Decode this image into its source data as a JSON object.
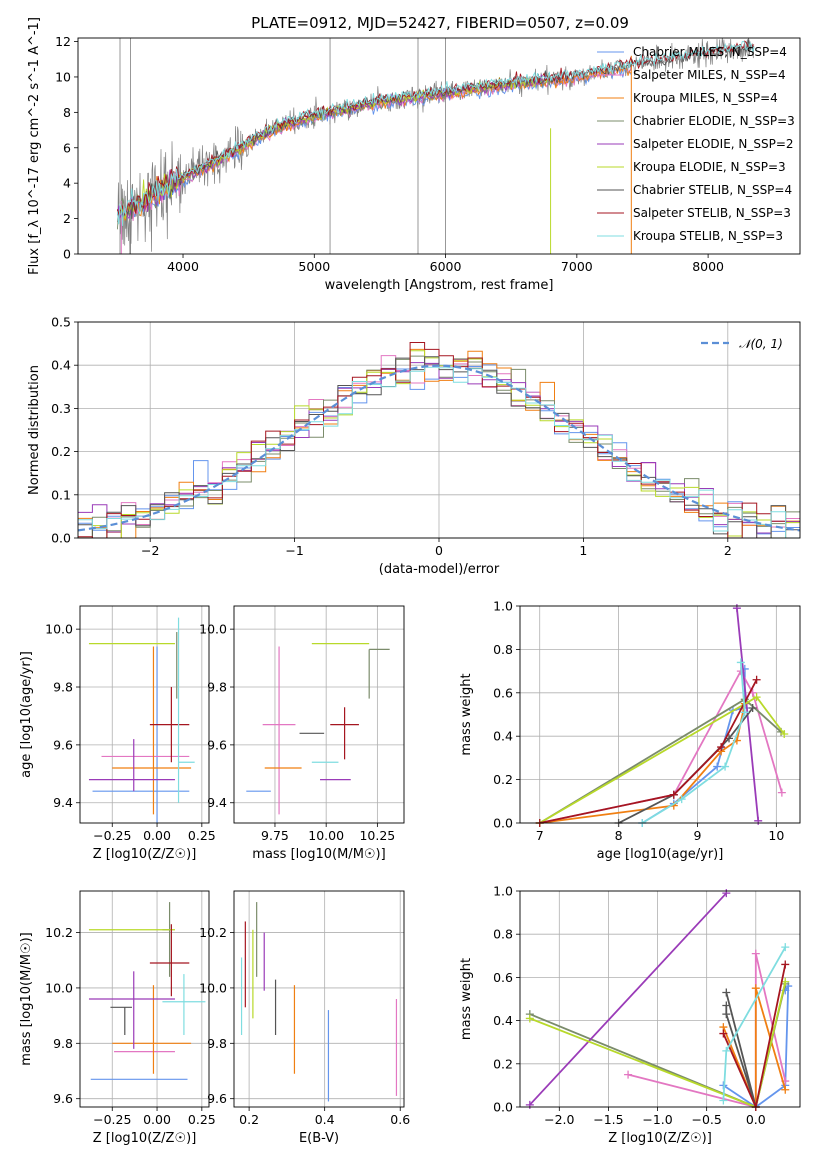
{
  "figure": {
    "title": "PLATE=0912, MJD=52427, FIBERID=0507, z=0.09"
  },
  "colors": {
    "Chabrier MILES": "#6495ED",
    "Salpeter MILES": "#E377C2",
    "Kroupa MILES": "#F07F12",
    "Chabrier ELODIE": "#7B8C6B",
    "Salpeter ELODIE": "#9A3BB8",
    "Kroupa ELODIE": "#B8D92A",
    "Chabrier STELIB": "#555555",
    "Salpeter STELIB": "#A51620",
    "Kroupa STELIB": "#7FDDE0",
    "data": "#7F7F7F",
    "normal": "#5B8FD6"
  },
  "chart_data": [
    {
      "id": "spectrum",
      "type": "line",
      "title": "PLATE=0912, MJD=52427, FIBERID=0507, z=0.09",
      "xlabel": "wavelength [Angstrom, rest frame]",
      "ylabel": "Flux [f_λ 10^-17 erg cm^-2 s^-1 A^-1]",
      "xlim": [
        3200,
        8700
      ],
      "ylim": [
        0,
        12.2
      ],
      "xticks": [
        4000,
        5000,
        6000,
        7000,
        8000
      ],
      "yticks": [
        0,
        2,
        4,
        6,
        8,
        10,
        12
      ],
      "grid": false,
      "legend_position": "top-right",
      "data_trend": {
        "x": [
          3500,
          3700,
          4000,
          4300,
          4700,
          5000,
          5500,
          6000,
          6500,
          7000,
          7400,
          8000,
          8300
        ],
        "y": [
          2.2,
          3.0,
          4.3,
          5.4,
          7.1,
          7.8,
          8.6,
          9.1,
          9.6,
          10.0,
          10.6,
          11.3,
          11.6
        ]
      },
      "series": [
        {
          "name": "Chabrier MILES, N_SSP=4"
        },
        {
          "name": "Salpeter MILES, N_SSP=4"
        },
        {
          "name": "Kroupa MILES, N_SSP=4"
        },
        {
          "name": "Chabrier ELODIE, N_SSP=3"
        },
        {
          "name": "Salpeter ELODIE, N_SSP=2"
        },
        {
          "name": "Kroupa ELODIE, N_SSP=3"
        },
        {
          "name": "Chabrier STELIB, N_SSP=4"
        },
        {
          "name": "Salpeter STELIB, N_SSP=3"
        },
        {
          "name": "Kroupa STELIB, N_SSP=3"
        }
      ]
    },
    {
      "id": "residuals",
      "type": "line",
      "xlabel": "(data-model)/error",
      "ylabel": "Normed distribution",
      "xlim": [
        -2.5,
        2.5
      ],
      "ylim": [
        0,
        0.5
      ],
      "xticks": [
        -2,
        -1,
        0,
        1,
        2
      ],
      "yticks": [
        0.0,
        0.1,
        0.2,
        0.3,
        0.4,
        0.5
      ],
      "grid": true,
      "legend_position": "top-right",
      "legend": "𝒩(0, 1)",
      "bin_width": 0.1
    },
    {
      "id": "age_vs_Z",
      "type": "scatter",
      "xlabel": "Z [log10(Z/Z☉)]",
      "ylabel": "age  [log10(age/yr)]",
      "xlim": [
        -0.43,
        0.29
      ],
      "ylim": [
        9.33,
        10.08
      ],
      "xticks": [
        -0.25,
        0.0,
        0.25
      ],
      "yticks": [
        9.4,
        9.6,
        9.8,
        10.0
      ],
      "grid": true,
      "points": [
        {
          "series": "Chabrier MILES",
          "x": 0.0,
          "y": 9.44,
          "xerr": [
            0.36,
            0.18
          ],
          "yerr": [
            0.14,
            0.5
          ]
        },
        {
          "series": "Salpeter MILES",
          "x": 0.0,
          "y": 9.56,
          "xerr": [
            0.31,
            0.18
          ],
          "yerr": [
            0.0,
            0.0
          ]
        },
        {
          "series": "Kroupa MILES",
          "x": -0.02,
          "y": 9.52,
          "xerr": [
            0.23,
            0.21
          ],
          "yerr": [
            0.16,
            0.42
          ]
        },
        {
          "series": "Chabrier ELODIE",
          "x": 0.11,
          "y": 9.93,
          "xerr": [
            0.0,
            0.0
          ],
          "yerr": [
            0.17,
            0.06
          ]
        },
        {
          "series": "Salpeter ELODIE",
          "x": -0.13,
          "y": 9.48,
          "xerr": [
            0.25,
            0.23
          ],
          "yerr": [
            0.04,
            0.14
          ]
        },
        {
          "series": "Kroupa ELODIE",
          "x": -0.1,
          "y": 9.95,
          "xerr": [
            0.28,
            0.2
          ],
          "yerr": [
            0.0,
            0.0
          ]
        },
        {
          "series": "Chabrier STELIB",
          "x": -0.18,
          "y": 9.64,
          "xerr": [
            0.0,
            0.0
          ],
          "yerr": [
            0.0,
            0.0
          ]
        },
        {
          "series": "Salpeter STELIB",
          "x": 0.08,
          "y": 9.67,
          "xerr": [
            0.12,
            0.1
          ],
          "yerr": [
            0.13,
            0.13
          ]
        },
        {
          "series": "Kroupa STELIB",
          "x": 0.12,
          "y": 9.54,
          "xerr": [
            0.0,
            0.09
          ],
          "yerr": [
            0.14,
            0.5
          ]
        }
      ]
    },
    {
      "id": "age_vs_mass",
      "type": "scatter",
      "xlabel": "mass [log10(M/M☉)]",
      "ylabel": "",
      "xlim": [
        9.55,
        10.38
      ],
      "ylim": [
        9.33,
        10.08
      ],
      "xticks": [
        9.75,
        10.0,
        10.25
      ],
      "yticks": [
        9.4,
        9.6,
        9.8,
        10.0
      ],
      "grid": true,
      "points": [
        {
          "series": "Chabrier MILES",
          "x": 9.67,
          "y": 9.44,
          "xerr": [
            0.06,
            0.06
          ],
          "yerr": [
            0.0,
            0.0
          ]
        },
        {
          "series": "Salpeter MILES",
          "x": 9.77,
          "y": 9.67,
          "xerr": [
            0.08,
            0.08
          ],
          "yerr": [
            0.31,
            0.27
          ]
        },
        {
          "series": "Kroupa MILES",
          "x": 9.8,
          "y": 9.52,
          "xerr": [
            0.1,
            0.08
          ],
          "yerr": [
            0.0,
            0.0
          ]
        },
        {
          "series": "Chabrier ELODIE",
          "x": 10.21,
          "y": 9.93,
          "xerr": [
            0.0,
            0.1
          ],
          "yerr": [
            0.17,
            0.0
          ]
        },
        {
          "series": "Salpeter ELODIE",
          "x": 10.06,
          "y": 9.48,
          "xerr": [
            0.09,
            0.06
          ],
          "yerr": [
            0.0,
            0.0
          ]
        },
        {
          "series": "Kroupa ELODIE",
          "x": 10.21,
          "y": 9.95,
          "xerr": [
            0.28,
            0.0
          ],
          "yerr": [
            0.0,
            0.0
          ]
        },
        {
          "series": "Chabrier STELIB",
          "x": 9.93,
          "y": 9.64,
          "xerr": [
            0.06,
            0.06
          ],
          "yerr": [
            0.0,
            0.0
          ]
        },
        {
          "series": "Salpeter STELIB",
          "x": 10.09,
          "y": 9.67,
          "xerr": [
            0.07,
            0.07
          ],
          "yerr": [
            0.12,
            0.06
          ]
        },
        {
          "series": "Kroupa STELIB",
          "x": 10.0,
          "y": 9.54,
          "xerr": [
            0.07,
            0.06
          ],
          "yerr": [
            0.0,
            0.0
          ]
        }
      ]
    },
    {
      "id": "weight_vs_age",
      "type": "line",
      "xlabel": "age  [log10(age/yr)]",
      "ylabel": "mass weight",
      "xlim": [
        6.75,
        10.3
      ],
      "ylim": [
        0,
        1.0
      ],
      "xticks": [
        7,
        8,
        9,
        10
      ],
      "yticks": [
        0.0,
        0.2,
        0.4,
        0.6,
        0.8,
        1.0
      ],
      "grid": true,
      "series": [
        {
          "name": "Chabrier MILES",
          "x": [
            8.3,
            8.7,
            9.25,
            9.45,
            9.6,
            9.6
          ],
          "y": [
            0.0,
            0.09,
            0.26,
            0.52,
            0.53,
            0.71
          ]
        },
        {
          "name": "Salpeter MILES",
          "x": [
            7.0,
            8.7,
            9.55,
            9.7,
            10.07
          ],
          "y": [
            0.0,
            0.13,
            0.7,
            0.6,
            0.14
          ]
        },
        {
          "name": "Kroupa MILES",
          "x": [
            7.0,
            8.7,
            9.3,
            9.5,
            9.6
          ],
          "y": [
            0.0,
            0.08,
            0.33,
            0.38,
            0.55
          ]
        },
        {
          "name": "Chabrier ELODIE",
          "x": [
            7.0,
            9.6,
            10.06
          ],
          "y": [
            0.0,
            0.57,
            0.42
          ]
        },
        {
          "name": "Salpeter ELODIE",
          "x": [
            9.5,
            9.77
          ],
          "y": [
            0.99,
            0.01
          ]
        },
        {
          "name": "Kroupa ELODIE",
          "x": [
            7.0,
            9.75,
            10.1
          ],
          "y": [
            0.0,
            0.58,
            0.41
          ]
        },
        {
          "name": "Chabrier STELIB",
          "x": [
            8.0,
            8.7,
            9.4,
            9.7
          ],
          "y": [
            0.0,
            0.13,
            0.39,
            0.53
          ]
        },
        {
          "name": "Salpeter STELIB",
          "x": [
            7.0,
            8.7,
            9.3,
            9.75
          ],
          "y": [
            0.0,
            0.13,
            0.35,
            0.66
          ]
        },
        {
          "name": "Kroupa STELIB",
          "x": [
            8.3,
            8.8,
            9.35,
            9.6,
            9.55
          ],
          "y": [
            0.0,
            0.11,
            0.26,
            0.51,
            0.74
          ]
        }
      ]
    },
    {
      "id": "mass_vs_Z",
      "type": "scatter",
      "xlabel": "Z [log10(Z/Z☉)]",
      "ylabel": "mass [log10(M/M☉)]",
      "xlim": [
        -0.43,
        0.29
      ],
      "ylim": [
        9.57,
        10.35
      ],
      "xticks": [
        -0.25,
        0.0,
        0.25
      ],
      "yticks": [
        9.6,
        9.8,
        10.0,
        10.2
      ],
      "grid": true,
      "points": [
        {
          "series": "Chabrier MILES",
          "x": -0.1,
          "y": 9.67,
          "xerr": [
            0.27,
            0.27
          ],
          "yerr": [
            0.0,
            0.0
          ]
        },
        {
          "series": "Salpeter MILES",
          "x": -0.04,
          "y": 9.77,
          "xerr": [
            0.2,
            0.14
          ],
          "yerr": [
            0.0,
            0.0
          ]
        },
        {
          "series": "Kroupa MILES",
          "x": -0.02,
          "y": 9.8,
          "xerr": [
            0.23,
            0.21
          ],
          "yerr": [
            0.11,
            0.21
          ]
        },
        {
          "series": "Chabrier ELODIE",
          "x": 0.07,
          "y": 10.21,
          "xerr": [
            0.04,
            0.0
          ],
          "yerr": [
            0.17,
            0.1
          ]
        },
        {
          "series": "Salpeter ELODIE",
          "x": -0.13,
          "y": 9.96,
          "xerr": [
            0.25,
            0.23
          ],
          "yerr": [
            0.18,
            0.1
          ]
        },
        {
          "series": "Kroupa ELODIE",
          "x": -0.1,
          "y": 10.21,
          "xerr": [
            0.28,
            0.2
          ],
          "yerr": [
            0.0,
            0.0
          ]
        },
        {
          "series": "Chabrier STELIB",
          "x": -0.18,
          "y": 9.93,
          "xerr": [
            0.08,
            0.04
          ],
          "yerr": [
            0.1,
            0.0
          ]
        },
        {
          "series": "Salpeter STELIB",
          "x": 0.08,
          "y": 10.09,
          "xerr": [
            0.12,
            0.1
          ],
          "yerr": [
            0.12,
            0.14
          ]
        },
        {
          "series": "Kroupa STELIB",
          "x": 0.15,
          "y": 9.95,
          "xerr": [
            0.12,
            0.12
          ],
          "yerr": [
            0.12,
            0.1
          ]
        }
      ]
    },
    {
      "id": "mass_vs_ebv",
      "type": "scatter",
      "xlabel": "E(B-V)",
      "ylabel": "",
      "xlim": [
        0.16,
        0.61
      ],
      "ylim": [
        9.57,
        10.35
      ],
      "xticks": [
        0.2,
        0.4,
        0.6
      ],
      "yticks": [
        9.6,
        9.8,
        10.0,
        10.2
      ],
      "grid": true,
      "points": [
        {
          "series": "Chabrier MILES",
          "x": 0.41,
          "y": 9.76,
          "yerr": [
            0.17,
            0.16
          ]
        },
        {
          "series": "Salpeter MILES",
          "x": 0.59,
          "y": 9.78,
          "yerr": [
            0.17,
            0.18
          ]
        },
        {
          "series": "Kroupa MILES",
          "x": 0.32,
          "y": 9.85,
          "yerr": [
            0.16,
            0.16
          ]
        },
        {
          "series": "Chabrier ELODIE",
          "x": 0.22,
          "y": 10.18,
          "yerr": [
            0.14,
            0.13
          ]
        },
        {
          "series": "Salpeter ELODIE",
          "x": 0.24,
          "y": 10.07,
          "yerr": [
            0.08,
            0.13
          ]
        },
        {
          "series": "Kroupa ELODIE",
          "x": 0.21,
          "y": 10.05,
          "yerr": [
            0.16,
            0.16
          ]
        },
        {
          "series": "Chabrier STELIB",
          "x": 0.27,
          "y": 9.93,
          "yerr": [
            0.1,
            0.1
          ]
        },
        {
          "series": "Salpeter STELIB",
          "x": 0.19,
          "y": 10.08,
          "yerr": [
            0.15,
            0.16
          ]
        },
        {
          "series": "Kroupa STELIB",
          "x": 0.18,
          "y": 9.95,
          "yerr": [
            0.12,
            0.16
          ]
        }
      ]
    },
    {
      "id": "weight_vs_Z",
      "type": "line",
      "xlabel": "Z [log10(Z/Z☉)]",
      "ylabel": "mass weight",
      "xlim": [
        -2.4,
        0.45
      ],
      "ylim": [
        0,
        1.0
      ],
      "xticks": [
        -2.0,
        -1.5,
        -1.0,
        -0.5,
        0.0
      ],
      "yticks": [
        0.0,
        0.2,
        0.4,
        0.6,
        0.8,
        1.0
      ],
      "grid": true,
      "series": [
        {
          "name": "Chabrier MILES",
          "x": [
            -0.33,
            0.0,
            0.3,
            0.33,
            0.3
          ],
          "y": [
            0.1,
            0.0,
            0.1,
            0.56,
            0.54
          ]
        },
        {
          "name": "Salpeter MILES",
          "x": [
            -1.3,
            0.0,
            0.0,
            0.3
          ],
          "y": [
            0.15,
            0.0,
            0.71,
            0.12
          ]
        },
        {
          "name": "Kroupa MILES",
          "x": [
            -0.33,
            0.0,
            0.0,
            0.3
          ],
          "y": [
            0.37,
            0.0,
            0.55,
            0.08
          ]
        },
        {
          "name": "Chabrier ELODIE",
          "x": [
            -2.3,
            0.0,
            0.3
          ],
          "y": [
            0.43,
            0.0,
            0.57
          ]
        },
        {
          "name": "Salpeter ELODIE",
          "x": [
            -2.3,
            -0.3
          ],
          "y": [
            0.01,
            0.99
          ]
        },
        {
          "name": "Kroupa ELODIE",
          "x": [
            -2.3,
            0.0,
            0.3
          ],
          "y": [
            0.41,
            0.0,
            0.58
          ]
        },
        {
          "name": "Chabrier STELIB",
          "x": [
            -0.3,
            0.0,
            -0.3,
            -0.3
          ],
          "y": [
            0.53,
            0.0,
            0.43,
            0.47
          ]
        },
        {
          "name": "Salpeter STELIB",
          "x": [
            -0.33,
            0.0,
            0.3
          ],
          "y": [
            0.34,
            0.0,
            0.66
          ]
        },
        {
          "name": "Kroupa STELIB",
          "x": [
            -0.33,
            -0.3,
            0.3
          ],
          "y": [
            0.03,
            0.26,
            0.74
          ]
        }
      ]
    }
  ]
}
